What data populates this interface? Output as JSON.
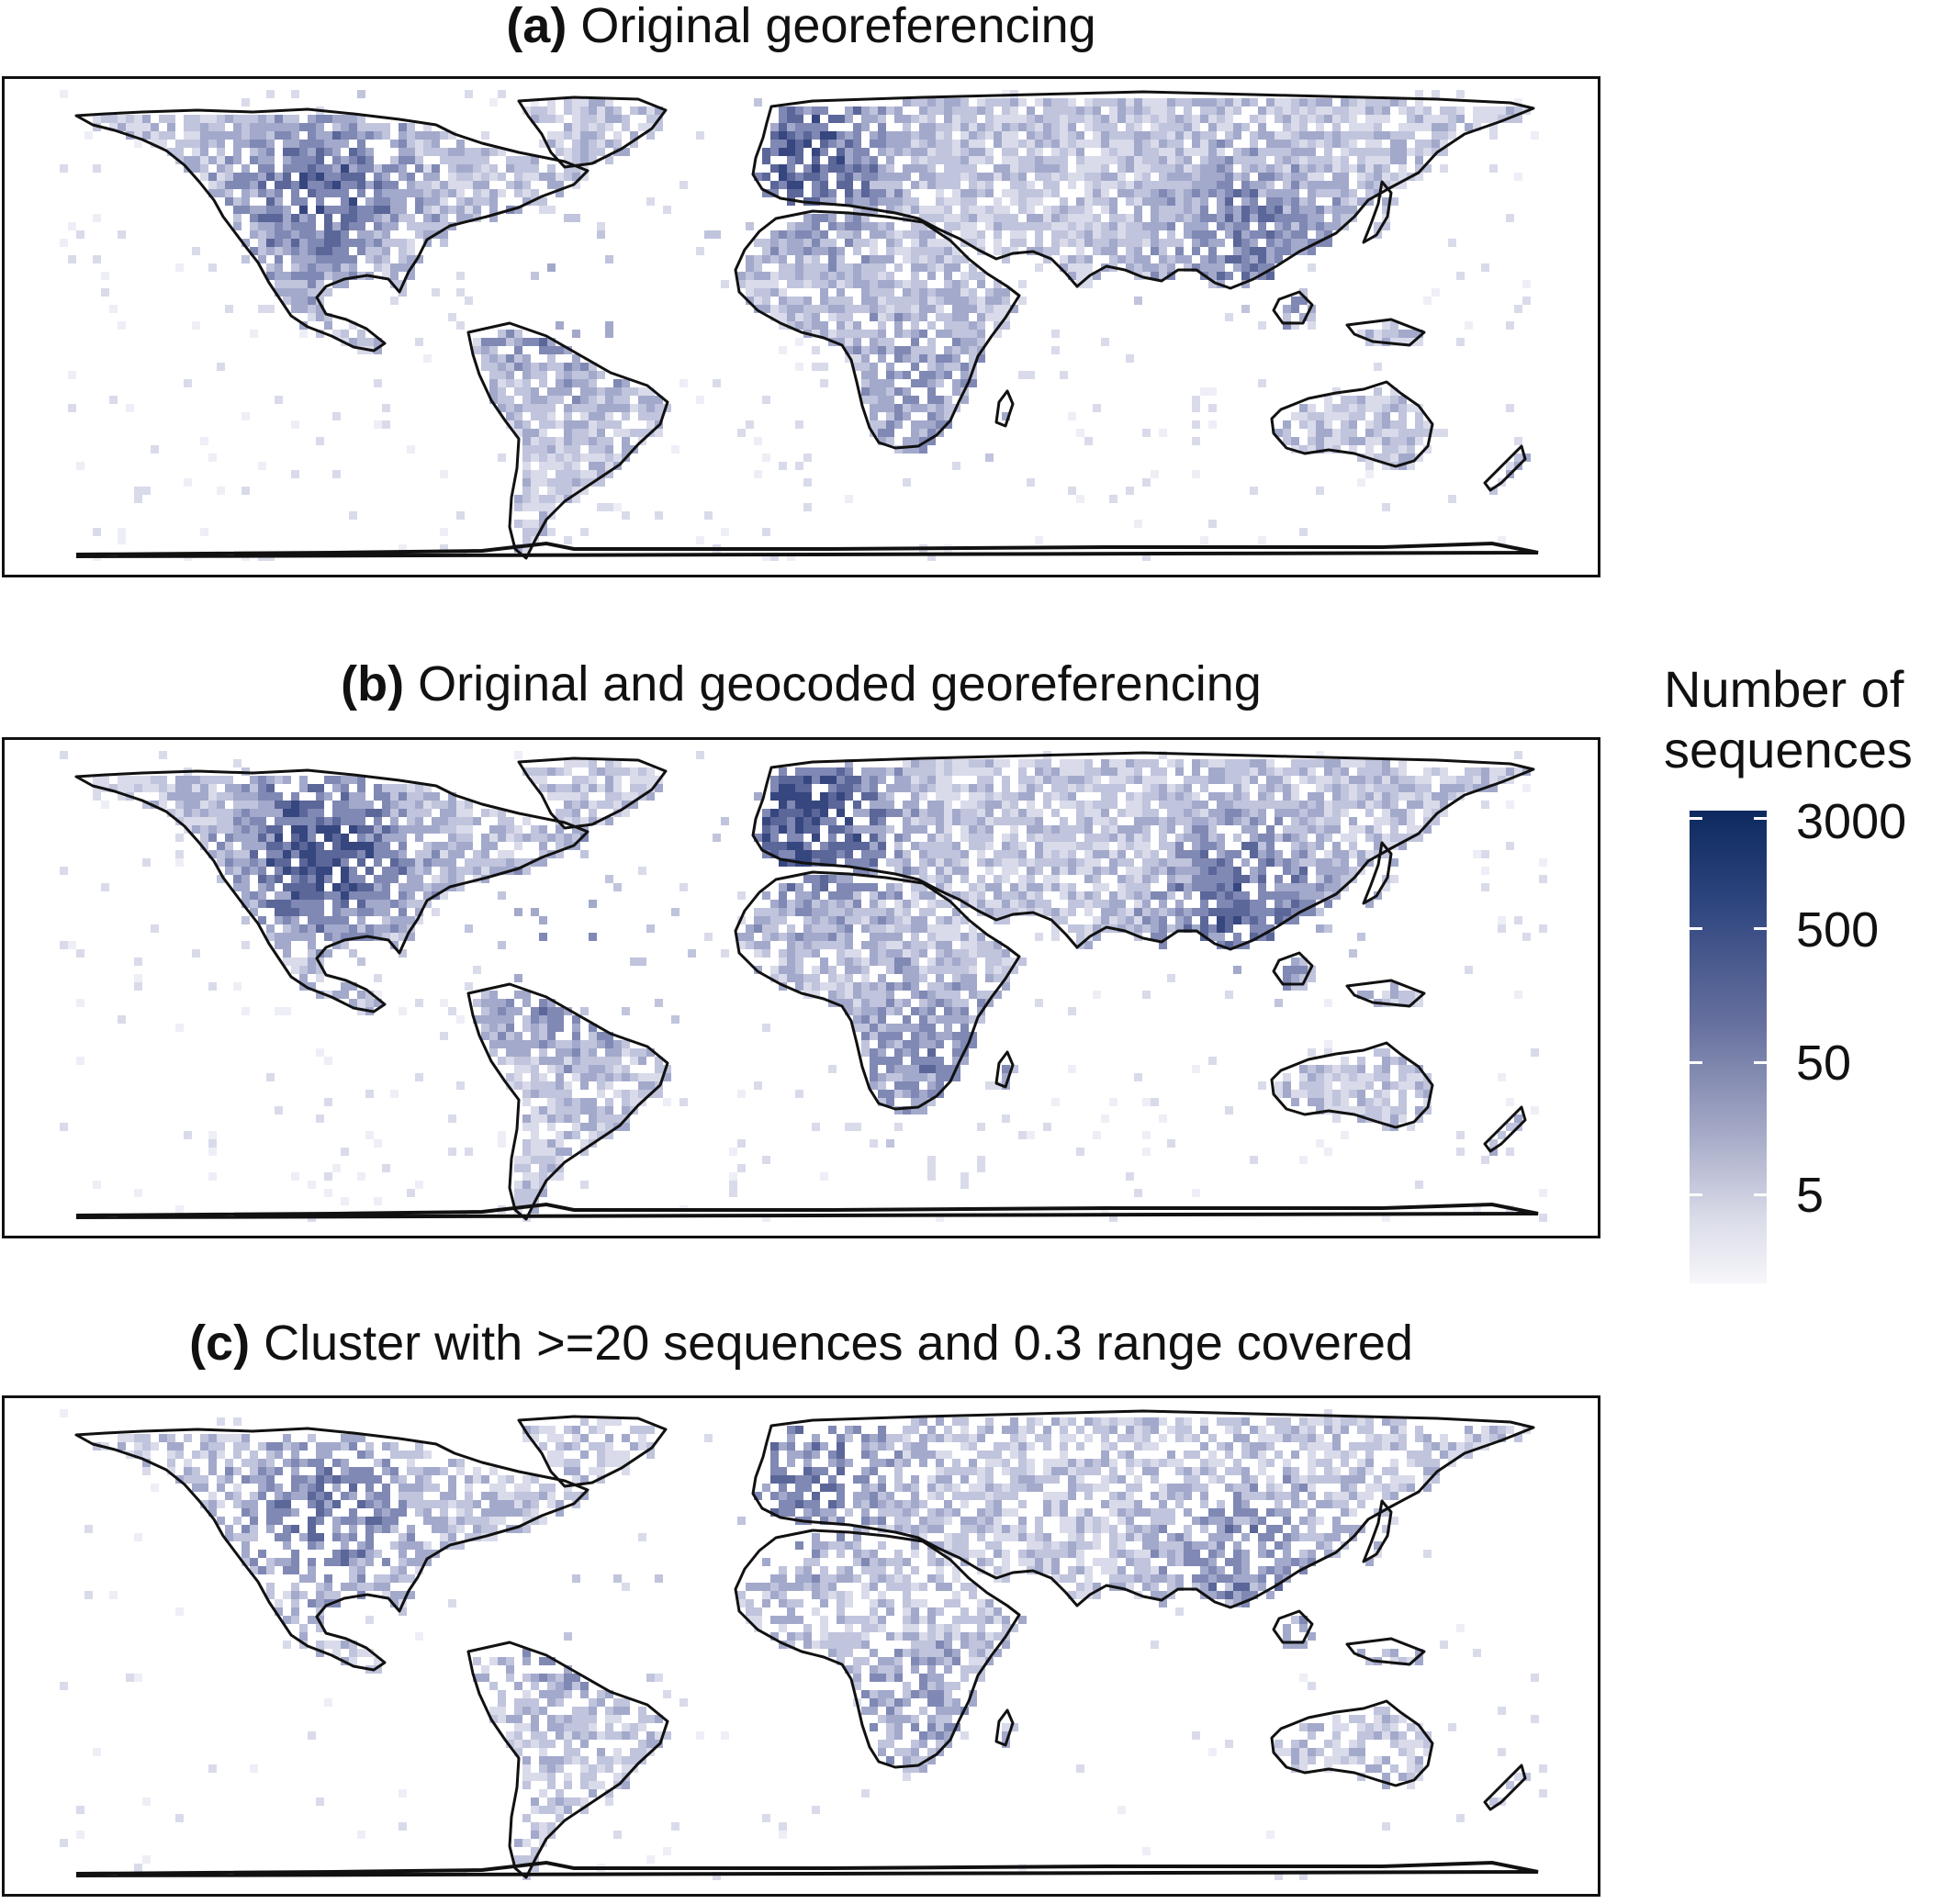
{
  "panels": [
    {
      "letter": "(a)",
      "title": "Original georeferencing",
      "density": "original"
    },
    {
      "letter": "(b)",
      "title": "Original and geocoded georeferencing",
      "density": "geocoded"
    },
    {
      "letter": "(c)",
      "title": "Cluster with >=20 sequences and 0.3 range covered",
      "density": "cluster"
    }
  ],
  "legend": {
    "title_line1": "Number of",
    "title_line2": "sequences",
    "ticks": [
      {
        "label": "3000",
        "value": 3000
      },
      {
        "label": "500",
        "value": 500
      },
      {
        "label": "50",
        "value": 50
      },
      {
        "label": "5",
        "value": 5
      }
    ],
    "color_low": "#f6f6fa",
    "color_high": "#0d2a5e",
    "scale": "log"
  },
  "colors": {
    "outline": "#111111",
    "cell_dark": "#2f467f",
    "cell_mid": "#7a83ad",
    "cell_light": "#c8cbe0"
  }
}
